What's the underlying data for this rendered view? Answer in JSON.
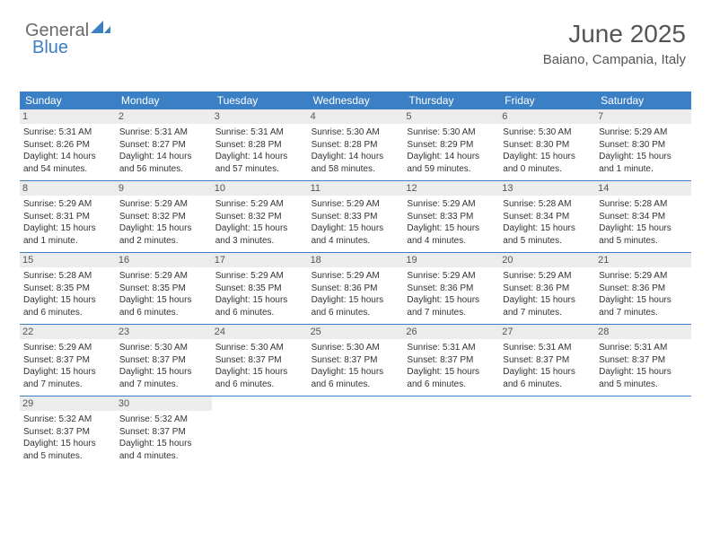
{
  "logo": {
    "text1": "General",
    "text2": "Blue"
  },
  "header": {
    "month": "June 2025",
    "location": "Baiano, Campania, Italy"
  },
  "colors": {
    "header_bg": "#3b7fc4",
    "daynum_bg": "#ececec",
    "rule": "#3b7fc4",
    "text": "#333333",
    "muted": "#555555"
  },
  "dow": [
    "Sunday",
    "Monday",
    "Tuesday",
    "Wednesday",
    "Thursday",
    "Friday",
    "Saturday"
  ],
  "weeks": [
    [
      {
        "n": "1",
        "sr": "5:31 AM",
        "ss": "8:26 PM",
        "dl": "14 hours and 54 minutes."
      },
      {
        "n": "2",
        "sr": "5:31 AM",
        "ss": "8:27 PM",
        "dl": "14 hours and 56 minutes."
      },
      {
        "n": "3",
        "sr": "5:31 AM",
        "ss": "8:28 PM",
        "dl": "14 hours and 57 minutes."
      },
      {
        "n": "4",
        "sr": "5:30 AM",
        "ss": "8:28 PM",
        "dl": "14 hours and 58 minutes."
      },
      {
        "n": "5",
        "sr": "5:30 AM",
        "ss": "8:29 PM",
        "dl": "14 hours and 59 minutes."
      },
      {
        "n": "6",
        "sr": "5:30 AM",
        "ss": "8:30 PM",
        "dl": "15 hours and 0 minutes."
      },
      {
        "n": "7",
        "sr": "5:29 AM",
        "ss": "8:30 PM",
        "dl": "15 hours and 1 minute."
      }
    ],
    [
      {
        "n": "8",
        "sr": "5:29 AM",
        "ss": "8:31 PM",
        "dl": "15 hours and 1 minute."
      },
      {
        "n": "9",
        "sr": "5:29 AM",
        "ss": "8:32 PM",
        "dl": "15 hours and 2 minutes."
      },
      {
        "n": "10",
        "sr": "5:29 AM",
        "ss": "8:32 PM",
        "dl": "15 hours and 3 minutes."
      },
      {
        "n": "11",
        "sr": "5:29 AM",
        "ss": "8:33 PM",
        "dl": "15 hours and 4 minutes."
      },
      {
        "n": "12",
        "sr": "5:29 AM",
        "ss": "8:33 PM",
        "dl": "15 hours and 4 minutes."
      },
      {
        "n": "13",
        "sr": "5:28 AM",
        "ss": "8:34 PM",
        "dl": "15 hours and 5 minutes."
      },
      {
        "n": "14",
        "sr": "5:28 AM",
        "ss": "8:34 PM",
        "dl": "15 hours and 5 minutes."
      }
    ],
    [
      {
        "n": "15",
        "sr": "5:28 AM",
        "ss": "8:35 PM",
        "dl": "15 hours and 6 minutes."
      },
      {
        "n": "16",
        "sr": "5:29 AM",
        "ss": "8:35 PM",
        "dl": "15 hours and 6 minutes."
      },
      {
        "n": "17",
        "sr": "5:29 AM",
        "ss": "8:35 PM",
        "dl": "15 hours and 6 minutes."
      },
      {
        "n": "18",
        "sr": "5:29 AM",
        "ss": "8:36 PM",
        "dl": "15 hours and 6 minutes."
      },
      {
        "n": "19",
        "sr": "5:29 AM",
        "ss": "8:36 PM",
        "dl": "15 hours and 7 minutes."
      },
      {
        "n": "20",
        "sr": "5:29 AM",
        "ss": "8:36 PM",
        "dl": "15 hours and 7 minutes."
      },
      {
        "n": "21",
        "sr": "5:29 AM",
        "ss": "8:36 PM",
        "dl": "15 hours and 7 minutes."
      }
    ],
    [
      {
        "n": "22",
        "sr": "5:29 AM",
        "ss": "8:37 PM",
        "dl": "15 hours and 7 minutes."
      },
      {
        "n": "23",
        "sr": "5:30 AM",
        "ss": "8:37 PM",
        "dl": "15 hours and 7 minutes."
      },
      {
        "n": "24",
        "sr": "5:30 AM",
        "ss": "8:37 PM",
        "dl": "15 hours and 6 minutes."
      },
      {
        "n": "25",
        "sr": "5:30 AM",
        "ss": "8:37 PM",
        "dl": "15 hours and 6 minutes."
      },
      {
        "n": "26",
        "sr": "5:31 AM",
        "ss": "8:37 PM",
        "dl": "15 hours and 6 minutes."
      },
      {
        "n": "27",
        "sr": "5:31 AM",
        "ss": "8:37 PM",
        "dl": "15 hours and 6 minutes."
      },
      {
        "n": "28",
        "sr": "5:31 AM",
        "ss": "8:37 PM",
        "dl": "15 hours and 5 minutes."
      }
    ],
    [
      {
        "n": "29",
        "sr": "5:32 AM",
        "ss": "8:37 PM",
        "dl": "15 hours and 5 minutes."
      },
      {
        "n": "30",
        "sr": "5:32 AM",
        "ss": "8:37 PM",
        "dl": "15 hours and 4 minutes."
      },
      null,
      null,
      null,
      null,
      null
    ]
  ],
  "labels": {
    "sunrise": "Sunrise: ",
    "sunset": "Sunset: ",
    "daylight": "Daylight: "
  }
}
